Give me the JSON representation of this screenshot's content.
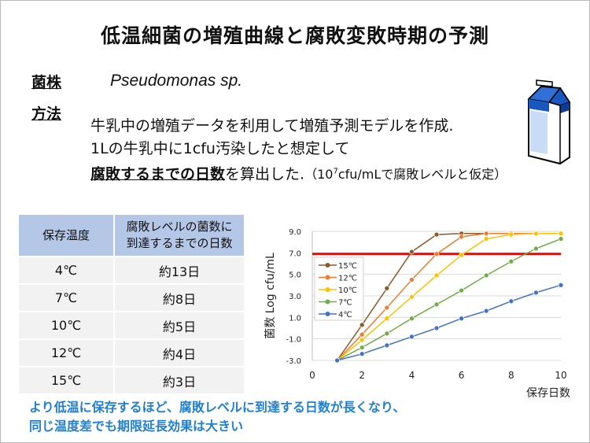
{
  "title": "低温細菌の増殖曲線と腐敗変敗時期の予測",
  "strain_label": "菌株",
  "strain": "Pseudomonas sp.",
  "method_label": "方法",
  "method": {
    "line1": "牛乳中の増殖データを利用して増殖予測モデルを作成.",
    "line2": "1Lの牛乳中に1cfu汚染したと想定して",
    "line3_em": "腐敗するまでの日数",
    "line3_rest": "を算出した.",
    "note_pre": "（10",
    "note_sup": "7",
    "note_post": "cfu/mLで腐敗レベルと仮定）"
  },
  "table": {
    "headers": [
      "保存温度",
      "腐敗レベルの菌数に",
      "到達するまでの日数"
    ],
    "rows": [
      [
        "4℃",
        "約13日"
      ],
      [
        "7℃",
        "約8日"
      ],
      [
        "10℃",
        "約5日"
      ],
      [
        "12℃",
        "約4日"
      ],
      [
        "15℃",
        "約3日"
      ]
    ]
  },
  "conclusion": {
    "line1": "より低温に保存するほど、腐敗レベルに到達する日数が長くなり、",
    "line2": "同じ温度差でも期限延長効果は大きい"
  },
  "chart_data": {
    "type": "line",
    "xlabel": "保存日数",
    "ylabel": "菌数 Log cfu/mL",
    "xlim": [
      0,
      10
    ],
    "ylim": [
      -3,
      9
    ],
    "xticks": [
      "0",
      "2",
      "4",
      "6",
      "8",
      "10"
    ],
    "yticks": [
      "-3.0",
      "-1.0",
      "1.0",
      "3.0",
      "5.0",
      "7.0",
      "9.0"
    ],
    "grid": true,
    "legend": "left",
    "threshold": {
      "y": 6.9,
      "color": "#ff0000"
    },
    "x": [
      1,
      2,
      3,
      4,
      5,
      6,
      7,
      8,
      9,
      10
    ],
    "series": [
      {
        "name": "15℃",
        "color": "#8b5a2b",
        "values": [
          -3,
          0.3,
          3.7,
          7.1,
          8.7,
          8.8,
          8.8,
          8.8,
          8.8,
          8.8
        ]
      },
      {
        "name": "12℃",
        "color": "#ed7d31",
        "values": [
          -3,
          -0.6,
          1.9,
          4.5,
          6.9,
          8.5,
          8.8,
          8.8,
          8.8,
          8.8
        ]
      },
      {
        "name": "10℃",
        "color": "#ffc000",
        "values": [
          -3,
          -1.1,
          0.9,
          2.9,
          4.9,
          6.8,
          8.3,
          8.7,
          8.8,
          8.8
        ]
      },
      {
        "name": "7℃",
        "color": "#70ad47",
        "values": [
          -3,
          -1.8,
          -0.5,
          0.9,
          2.2,
          3.5,
          4.9,
          6.2,
          7.4,
          8.3
        ]
      },
      {
        "name": "4℃",
        "color": "#4472c4",
        "values": [
          -3,
          -2.4,
          -1.6,
          -0.8,
          0.0,
          0.9,
          1.6,
          2.5,
          3.3,
          4.0
        ]
      }
    ]
  }
}
